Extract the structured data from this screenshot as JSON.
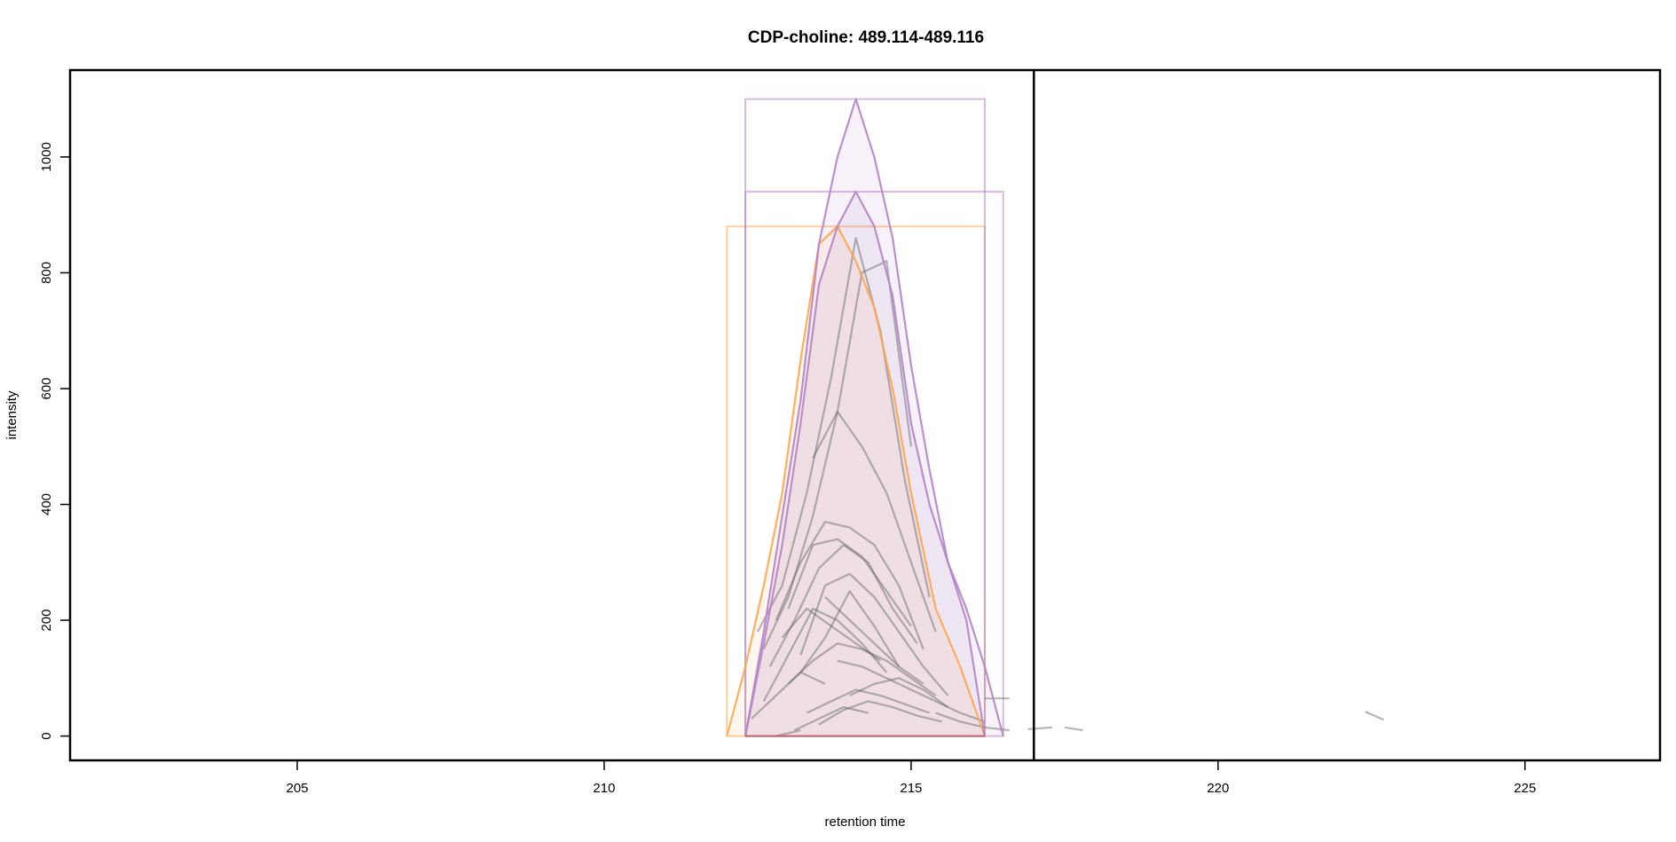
{
  "chart_data": {
    "type": "line",
    "title": "CDP-choline: 489.114-489.116",
    "xlabel": "retention time",
    "ylabel": "intensity",
    "xlim": [
      201.3,
      227.2
    ],
    "ylim": [
      -42,
      1150
    ],
    "x_ticks": [
      205,
      210,
      215,
      220,
      225
    ],
    "x_tick_labels": [
      "205",
      "210",
      "215",
      "220",
      "225"
    ],
    "y_ticks": [
      0,
      200,
      400,
      600,
      800,
      1000
    ],
    "y_tick_labels": [
      "0",
      "200",
      "400",
      "600",
      "800",
      "1000"
    ],
    "grid": false,
    "legend": "none",
    "vertical_line": {
      "x": 217.0,
      "color": "#000000"
    },
    "peaks": [
      {
        "color": "#ffa64d",
        "rect": {
          "xmin": 212.0,
          "xmax": 216.2,
          "ymin": 0,
          "ymax": 880
        },
        "x": [
          212.0,
          212.3,
          212.6,
          212.9,
          213.2,
          213.5,
          213.8,
          214.1,
          214.4,
          214.7,
          215.0,
          215.4,
          215.8,
          216.2
        ],
        "y": [
          0,
          120,
          260,
          420,
          650,
          850,
          880,
          820,
          740,
          600,
          420,
          220,
          120,
          0
        ]
      },
      {
        "color": "#b484c8",
        "rect": {
          "xmin": 212.3,
          "xmax": 216.2,
          "ymin": 0,
          "ymax": 1100
        },
        "x": [
          212.3,
          212.6,
          212.9,
          213.2,
          213.5,
          213.8,
          214.1,
          214.4,
          214.7,
          215.0,
          215.3,
          215.6,
          215.9,
          216.2
        ],
        "y": [
          0,
          180,
          380,
          580,
          850,
          1000,
          1100,
          1000,
          860,
          640,
          460,
          300,
          200,
          0
        ]
      },
      {
        "color": "#b484c8",
        "rect": {
          "xmin": 212.3,
          "xmax": 216.5,
          "ymin": 0,
          "ymax": 940
        },
        "x": [
          212.3,
          212.6,
          212.9,
          213.2,
          213.5,
          213.8,
          214.1,
          214.4,
          214.7,
          215.0,
          215.3,
          215.6,
          215.9,
          216.2,
          216.5
        ],
        "y": [
          0,
          160,
          330,
          540,
          780,
          880,
          940,
          880,
          760,
          540,
          400,
          300,
          220,
          120,
          0
        ]
      }
    ],
    "background_traces": [
      {
        "x": [
          212.5,
          212.9,
          213.3,
          213.7,
          214.1,
          214.5,
          214.9,
          215.3
        ],
        "y": [
          180,
          260,
          420,
          620,
          860,
          700,
          440,
          240
        ]
      },
      {
        "x": [
          212.6,
          213.0,
          213.4,
          213.8,
          214.2,
          214.6,
          215.0
        ],
        "y": [
          150,
          240,
          380,
          560,
          800,
          820,
          500
        ]
      },
      {
        "x": [
          213.4,
          213.8,
          214.2,
          214.6,
          215.0,
          215.4
        ],
        "y": [
          480,
          560,
          500,
          420,
          300,
          180
        ]
      },
      {
        "x": [
          212.8,
          213.2,
          213.6,
          214.0,
          214.4,
          214.8,
          215.2
        ],
        "y": [
          200,
          300,
          370,
          360,
          330,
          260,
          150
        ]
      },
      {
        "x": [
          213.0,
          213.4,
          213.8,
          214.2,
          214.6,
          215.0
        ],
        "y": [
          220,
          330,
          340,
          310,
          250,
          190
        ]
      },
      {
        "x": [
          212.7,
          213.1,
          213.5,
          213.9,
          214.3,
          214.7,
          215.1
        ],
        "y": [
          120,
          200,
          290,
          330,
          300,
          220,
          160
        ]
      },
      {
        "x": [
          213.2,
          213.6,
          214.0,
          214.4,
          214.8,
          215.2,
          215.6
        ],
        "y": [
          140,
          260,
          280,
          240,
          180,
          120,
          70
        ]
      },
      {
        "x": [
          212.6,
          213.0,
          213.4,
          213.8,
          214.2,
          214.6
        ],
        "y": [
          60,
          140,
          220,
          200,
          160,
          110
        ]
      },
      {
        "x": [
          213.6,
          214.0,
          214.4,
          214.8,
          215.2
        ],
        "y": [
          240,
          200,
          160,
          120,
          90
        ]
      },
      {
        "x": [
          213.0,
          213.4,
          213.8,
          214.2,
          214.6,
          215.0,
          215.4
        ],
        "y": [
          90,
          130,
          160,
          150,
          130,
          100,
          70
        ]
      },
      {
        "x": [
          213.3,
          213.7,
          214.1,
          214.5,
          214.9,
          215.3
        ],
        "y": [
          40,
          60,
          80,
          70,
          55,
          40
        ]
      },
      {
        "x": [
          213.5,
          213.9,
          214.3,
          214.7,
          215.1,
          215.5
        ],
        "y": [
          20,
          45,
          60,
          50,
          35,
          25
        ]
      },
      {
        "x": [
          213.2,
          213.6,
          214.0,
          214.4,
          214.8
        ],
        "y": [
          110,
          170,
          250,
          190,
          120
        ]
      },
      {
        "x": [
          212.4,
          212.8,
          213.2,
          213.6
        ],
        "y": [
          30,
          70,
          110,
          90
        ]
      },
      {
        "x": [
          213.8,
          214.2,
          214.6,
          215.0,
          215.4,
          215.8,
          216.2
        ],
        "y": [
          130,
          120,
          100,
          80,
          60,
          40,
          25
        ]
      },
      {
        "x": [
          214.0,
          214.4,
          214.8,
          215.2,
          215.6
        ],
        "y": [
          70,
          90,
          100,
          80,
          50
        ]
      },
      {
        "x": [
          212.9,
          213.3,
          213.7,
          214.1,
          214.5
        ],
        "y": [
          170,
          220,
          190,
          160,
          130
        ]
      },
      {
        "x": [
          213.1,
          213.5,
          213.9,
          214.3
        ],
        "y": [
          10,
          30,
          50,
          40
        ]
      },
      {
        "x": [
          215.4,
          215.8,
          216.2,
          216.6
        ],
        "y": [
          40,
          25,
          15,
          10
        ]
      },
      {
        "x": [
          216.2,
          216.6
        ],
        "y": [
          65,
          65
        ]
      },
      {
        "x": [
          216.9,
          217.3
        ],
        "y": [
          12,
          15
        ]
      },
      {
        "x": [
          217.5,
          217.8
        ],
        "y": [
          15,
          10
        ]
      },
      {
        "x": [
          222.4,
          222.7
        ],
        "y": [
          42,
          28
        ]
      },
      {
        "x": [
          212.8,
          213.2
        ],
        "y": [
          0,
          10
        ]
      }
    ]
  }
}
